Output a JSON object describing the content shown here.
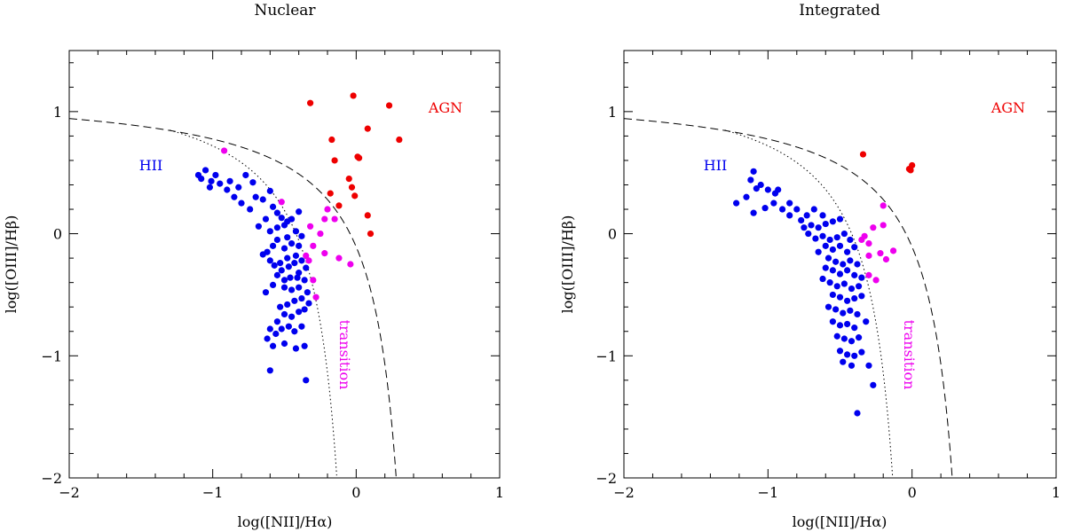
{
  "colors": {
    "hii": "#0000ee",
    "transition": "#ee00ee",
    "agn": "#ee0000",
    "axis": "#000000"
  },
  "chart_data": [
    {
      "type": "scatter",
      "title": "Nuclear",
      "xlabel": "log([NII]/Hα)",
      "ylabel": "log([OIII]/Hβ)",
      "xlim": [
        -2,
        1
      ],
      "ylim": [
        -2,
        1.5
      ],
      "xticks": [
        -2,
        -1,
        0,
        1
      ],
      "yticks": [
        -2,
        -1,
        0,
        1
      ],
      "xtick_labels": [
        "−2",
        "−1",
        "0",
        "1"
      ],
      "ytick_labels": [
        "−2",
        "−1",
        "0",
        "1"
      ],
      "region_labels": {
        "hii": "HII",
        "transition": "transition",
        "agn": "AGN"
      },
      "series": [
        {
          "name": "HII",
          "color": "#0000ee",
          "points": [
            [
              -1.05,
              0.52
            ],
            [
              -1.1,
              0.48
            ],
            [
              -1.08,
              0.45
            ],
            [
              -1.01,
              0.43
            ],
            [
              -0.98,
              0.48
            ],
            [
              -1.02,
              0.38
            ],
            [
              -0.95,
              0.41
            ],
            [
              -0.9,
              0.36
            ],
            [
              -0.88,
              0.43
            ],
            [
              -0.82,
              0.38
            ],
            [
              -0.77,
              0.48
            ],
            [
              -0.72,
              0.42
            ],
            [
              -0.85,
              0.3
            ],
            [
              -0.8,
              0.25
            ],
            [
              -0.74,
              0.2
            ],
            [
              -0.7,
              0.3
            ],
            [
              -0.65,
              0.28
            ],
            [
              -0.6,
              0.35
            ],
            [
              -0.58,
              0.22
            ],
            [
              -0.55,
              0.17
            ],
            [
              -0.52,
              0.13
            ],
            [
              -0.48,
              0.1
            ],
            [
              -0.63,
              0.12
            ],
            [
              -0.68,
              0.06
            ],
            [
              -0.6,
              0.02
            ],
            [
              -0.55,
              0.05
            ],
            [
              -0.5,
              0.07
            ],
            [
              -0.45,
              0.12
            ],
            [
              -0.4,
              0.18
            ],
            [
              -0.42,
              0.02
            ],
            [
              -0.48,
              -0.03
            ],
            [
              -0.55,
              -0.05
            ],
            [
              -0.58,
              -0.1
            ],
            [
              -0.62,
              -0.15
            ],
            [
              -0.5,
              -0.12
            ],
            [
              -0.45,
              -0.08
            ],
            [
              -0.4,
              -0.1
            ],
            [
              -0.38,
              -0.02
            ],
            [
              -0.42,
              -0.18
            ],
            [
              -0.48,
              -0.2
            ],
            [
              -0.53,
              -0.24
            ],
            [
              -0.57,
              -0.26
            ],
            [
              -0.6,
              -0.22
            ],
            [
              -0.52,
              -0.3
            ],
            [
              -0.47,
              -0.27
            ],
            [
              -0.43,
              -0.24
            ],
            [
              -0.38,
              -0.22
            ],
            [
              -0.35,
              -0.28
            ],
            [
              -0.4,
              -0.32
            ],
            [
              -0.46,
              -0.36
            ],
            [
              -0.5,
              -0.38
            ],
            [
              -0.55,
              -0.34
            ],
            [
              -0.58,
              -0.42
            ],
            [
              -0.5,
              -0.44
            ],
            [
              -0.45,
              -0.46
            ],
            [
              -0.4,
              -0.44
            ],
            [
              -0.36,
              -0.38
            ],
            [
              -0.34,
              -0.48
            ],
            [
              -0.38,
              -0.53
            ],
            [
              -0.43,
              -0.55
            ],
            [
              -0.48,
              -0.58
            ],
            [
              -0.53,
              -0.6
            ],
            [
              -0.5,
              -0.66
            ],
            [
              -0.45,
              -0.68
            ],
            [
              -0.4,
              -0.64
            ],
            [
              -0.36,
              -0.62
            ],
            [
              -0.33,
              -0.57
            ],
            [
              -0.55,
              -0.72
            ],
            [
              -0.6,
              -0.78
            ],
            [
              -0.56,
              -0.82
            ],
            [
              -0.52,
              -0.78
            ],
            [
              -0.47,
              -0.76
            ],
            [
              -0.43,
              -0.8
            ],
            [
              -0.38,
              -0.76
            ],
            [
              -0.62,
              -0.86
            ],
            [
              -0.58,
              -0.92
            ],
            [
              -0.5,
              -0.9
            ],
            [
              -0.42,
              -0.94
            ],
            [
              -0.36,
              -0.92
            ],
            [
              -0.6,
              -1.12
            ],
            [
              -0.35,
              -1.2
            ],
            [
              -0.65,
              -0.17
            ],
            [
              -0.63,
              -0.48
            ],
            [
              -0.41,
              -0.36
            ]
          ]
        },
        {
          "name": "transition",
          "color": "#ee00ee",
          "points": [
            [
              -0.92,
              0.68
            ],
            [
              -0.52,
              0.26
            ],
            [
              -0.2,
              0.2
            ],
            [
              -0.15,
              0.12
            ],
            [
              -0.32,
              0.06
            ],
            [
              -0.22,
              0.12
            ],
            [
              -0.25,
              0.0
            ],
            [
              -0.3,
              -0.1
            ],
            [
              -0.35,
              -0.18
            ],
            [
              -0.22,
              -0.16
            ],
            [
              -0.12,
              -0.2
            ],
            [
              -0.04,
              -0.25
            ],
            [
              -0.33,
              -0.22
            ],
            [
              -0.3,
              -0.38
            ],
            [
              -0.28,
              -0.52
            ]
          ]
        },
        {
          "name": "AGN",
          "color": "#ee0000",
          "points": [
            [
              -0.32,
              1.07
            ],
            [
              -0.02,
              1.13
            ],
            [
              0.23,
              1.05
            ],
            [
              0.08,
              0.86
            ],
            [
              0.3,
              0.77
            ],
            [
              -0.17,
              0.77
            ],
            [
              -0.15,
              0.6
            ],
            [
              0.01,
              0.63
            ],
            [
              0.02,
              0.62
            ],
            [
              -0.05,
              0.45
            ],
            [
              -0.03,
              0.38
            ],
            [
              -0.01,
              0.31
            ],
            [
              -0.18,
              0.33
            ],
            [
              -0.12,
              0.23
            ],
            [
              0.08,
              0.15
            ],
            [
              0.1,
              0.0
            ]
          ]
        }
      ]
    },
    {
      "type": "scatter",
      "title": "Integrated",
      "xlabel": "log([NII]/Hα)",
      "ylabel": "log([OIII]/Hβ)",
      "xlim": [
        -2,
        1
      ],
      "ylim": [
        -2,
        1.5
      ],
      "xticks": [
        -2,
        -1,
        0,
        1
      ],
      "yticks": [
        -2,
        -1,
        0,
        1
      ],
      "xtick_labels": [
        "−2",
        "−1",
        "0",
        "1"
      ],
      "ytick_labels": [
        "−2",
        "−1",
        "0",
        "1"
      ],
      "region_labels": {
        "hii": "HII",
        "transition": "transition",
        "agn": "AGN"
      },
      "series": [
        {
          "name": "HII",
          "color": "#0000ee",
          "points": [
            [
              -1.1,
              0.51
            ],
            [
              -1.12,
              0.44
            ],
            [
              -1.05,
              0.4
            ],
            [
              -1.0,
              0.36
            ],
            [
              -0.95,
              0.33
            ],
            [
              -0.93,
              0.36
            ],
            [
              -1.08,
              0.37
            ],
            [
              -1.15,
              0.3
            ],
            [
              -1.22,
              0.25
            ],
            [
              -1.1,
              0.17
            ],
            [
              -1.02,
              0.21
            ],
            [
              -0.96,
              0.25
            ],
            [
              -0.9,
              0.2
            ],
            [
              -0.85,
              0.15
            ],
            [
              -0.8,
              0.2
            ],
            [
              -0.77,
              0.11
            ],
            [
              -0.73,
              0.15
            ],
            [
              -0.68,
              0.2
            ],
            [
              -0.62,
              0.15
            ],
            [
              -0.7,
              0.07
            ],
            [
              -0.65,
              0.05
            ],
            [
              -0.6,
              0.08
            ],
            [
              -0.55,
              0.1
            ],
            [
              -0.5,
              0.12
            ],
            [
              -0.72,
              0.0
            ],
            [
              -0.67,
              -0.04
            ],
            [
              -0.62,
              -0.02
            ],
            [
              -0.57,
              -0.05
            ],
            [
              -0.52,
              -0.03
            ],
            [
              -0.47,
              0.0
            ],
            [
              -0.43,
              -0.05
            ],
            [
              -0.6,
              -0.1
            ],
            [
              -0.55,
              -0.13
            ],
            [
              -0.5,
              -0.1
            ],
            [
              -0.45,
              -0.15
            ],
            [
              -0.4,
              -0.11
            ],
            [
              -0.65,
              -0.15
            ],
            [
              -0.58,
              -0.2
            ],
            [
              -0.53,
              -0.23
            ],
            [
              -0.48,
              -0.25
            ],
            [
              -0.43,
              -0.22
            ],
            [
              -0.38,
              -0.25
            ],
            [
              -0.6,
              -0.28
            ],
            [
              -0.55,
              -0.3
            ],
            [
              -0.5,
              -0.33
            ],
            [
              -0.45,
              -0.3
            ],
            [
              -0.4,
              -0.34
            ],
            [
              -0.35,
              -0.36
            ],
            [
              -0.62,
              -0.37
            ],
            [
              -0.57,
              -0.4
            ],
            [
              -0.52,
              -0.43
            ],
            [
              -0.47,
              -0.41
            ],
            [
              -0.42,
              -0.45
            ],
            [
              -0.37,
              -0.43
            ],
            [
              -0.55,
              -0.5
            ],
            [
              -0.5,
              -0.52
            ],
            [
              -0.45,
              -0.55
            ],
            [
              -0.4,
              -0.53
            ],
            [
              -0.35,
              -0.51
            ],
            [
              -0.58,
              -0.6
            ],
            [
              -0.53,
              -0.62
            ],
            [
              -0.48,
              -0.65
            ],
            [
              -0.43,
              -0.63
            ],
            [
              -0.38,
              -0.66
            ],
            [
              -0.55,
              -0.72
            ],
            [
              -0.5,
              -0.75
            ],
            [
              -0.45,
              -0.74
            ],
            [
              -0.4,
              -0.77
            ],
            [
              -0.32,
              -0.72
            ],
            [
              -0.52,
              -0.84
            ],
            [
              -0.47,
              -0.86
            ],
            [
              -0.42,
              -0.88
            ],
            [
              -0.37,
              -0.85
            ],
            [
              -0.5,
              -0.96
            ],
            [
              -0.45,
              -0.99
            ],
            [
              -0.4,
              -1.0
            ],
            [
              -0.35,
              -0.97
            ],
            [
              -0.48,
              -1.05
            ],
            [
              -0.42,
              -1.08
            ],
            [
              -0.3,
              -1.08
            ],
            [
              -0.27,
              -1.24
            ],
            [
              -0.38,
              -1.47
            ],
            [
              -0.85,
              0.25
            ],
            [
              -0.75,
              0.05
            ]
          ]
        },
        {
          "name": "transition",
          "color": "#ee00ee",
          "points": [
            [
              -0.2,
              0.23
            ],
            [
              -0.35,
              -0.05
            ],
            [
              -0.33,
              -0.02
            ],
            [
              -0.3,
              -0.08
            ],
            [
              -0.3,
              -0.18
            ],
            [
              -0.22,
              -0.16
            ],
            [
              -0.18,
              -0.21
            ],
            [
              -0.13,
              -0.14
            ],
            [
              -0.3,
              -0.34
            ],
            [
              -0.25,
              -0.38
            ],
            [
              -0.2,
              0.07
            ],
            [
              -0.27,
              0.05
            ]
          ]
        },
        {
          "name": "AGN",
          "color": "#ee0000",
          "points": [
            [
              -0.34,
              0.65
            ],
            [
              -0.02,
              0.53
            ],
            [
              0.0,
              0.56
            ],
            [
              -0.01,
              0.52
            ]
          ]
        }
      ]
    }
  ]
}
